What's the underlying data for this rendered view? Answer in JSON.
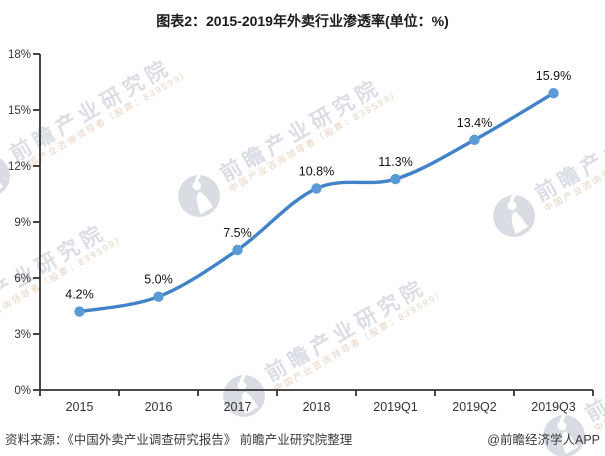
{
  "title": "图表2：2015-2019年外卖行业渗透率(单位：%)",
  "chart_data": {
    "type": "line",
    "title": "图表2：2015-2019年外卖行业渗透率(单位：%)",
    "categories": [
      "2015",
      "2016",
      "2017",
      "2018",
      "2019Q1",
      "2019Q2",
      "2019Q3"
    ],
    "values": [
      4.2,
      5.0,
      7.5,
      10.8,
      11.3,
      13.4,
      15.9
    ],
    "data_labels": [
      "4.2%",
      "5.0%",
      "7.5%",
      "10.8%",
      "11.3%",
      "13.4%",
      "15.9%"
    ],
    "xlabel": "",
    "ylabel": "",
    "ylim": [
      0,
      18
    ],
    "ytick_step": 3,
    "ytick_labels": [
      "0%",
      "3%",
      "6%",
      "9%",
      "12%",
      "15%",
      "18%"
    ],
    "grid": false,
    "legend": "none",
    "line_color": "#4282C8",
    "marker_color": "#5B9BD5"
  },
  "footer": {
    "source": "资料来源：《中国外卖产业调查研究报告》 前瞻产业研究院整理",
    "credit": "@前瞻经济学人APP"
  },
  "watermark": {
    "brand": "前瞻产业研究院",
    "subtitle": "中国产业咨询领导者（股票：839599）"
  }
}
